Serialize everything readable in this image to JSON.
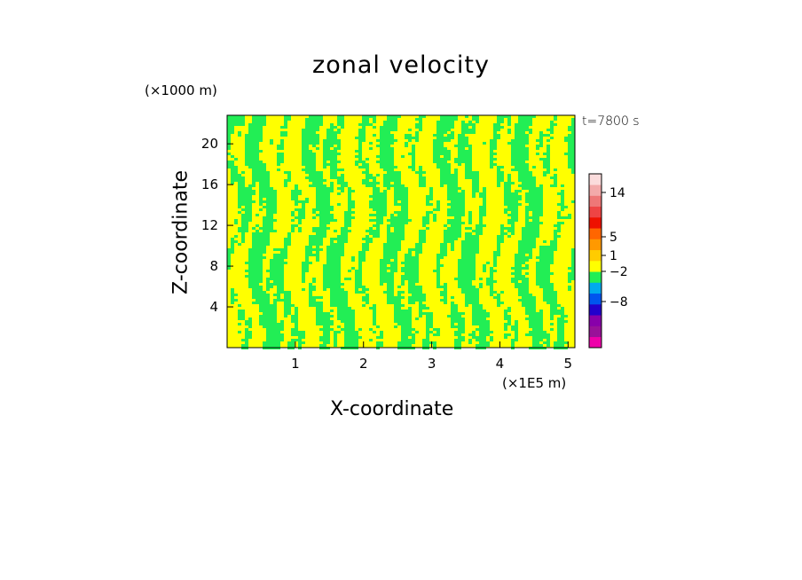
{
  "chart_data": {
    "type": "heatmap",
    "title": "zonal velocity",
    "xlabel": "X-coordinate",
    "ylabel": "Z-coordinate",
    "x_unit": "(×1E5 m)",
    "y_unit": "(×1000 m)",
    "time_label": "t=7800 s",
    "xlim": [
      0,
      5.1
    ],
    "ylim": [
      0,
      22.8
    ],
    "x_ticks": [
      "1",
      "2",
      "3",
      "4",
      "5"
    ],
    "y_ticks": [
      "4",
      "8",
      "12",
      "16",
      "20"
    ],
    "field_colors": {
      "positive_small": "#ffff00",
      "negative_small": "#22ee55"
    },
    "colorbar": {
      "colors": [
        "#ee00aa",
        "#991199",
        "#8800aa",
        "#2200cc",
        "#0055ee",
        "#00aaee",
        "#22ee55",
        "#ffff00",
        "#ffcc00",
        "#ff9900",
        "#ff6600",
        "#ee1100",
        "#ee4444",
        "#ee7777",
        "#f3aaaa",
        "#fbdcdc"
      ],
      "tick_labels": [
        "14",
        "5",
        "1",
        "−2",
        "−8"
      ]
    }
  }
}
